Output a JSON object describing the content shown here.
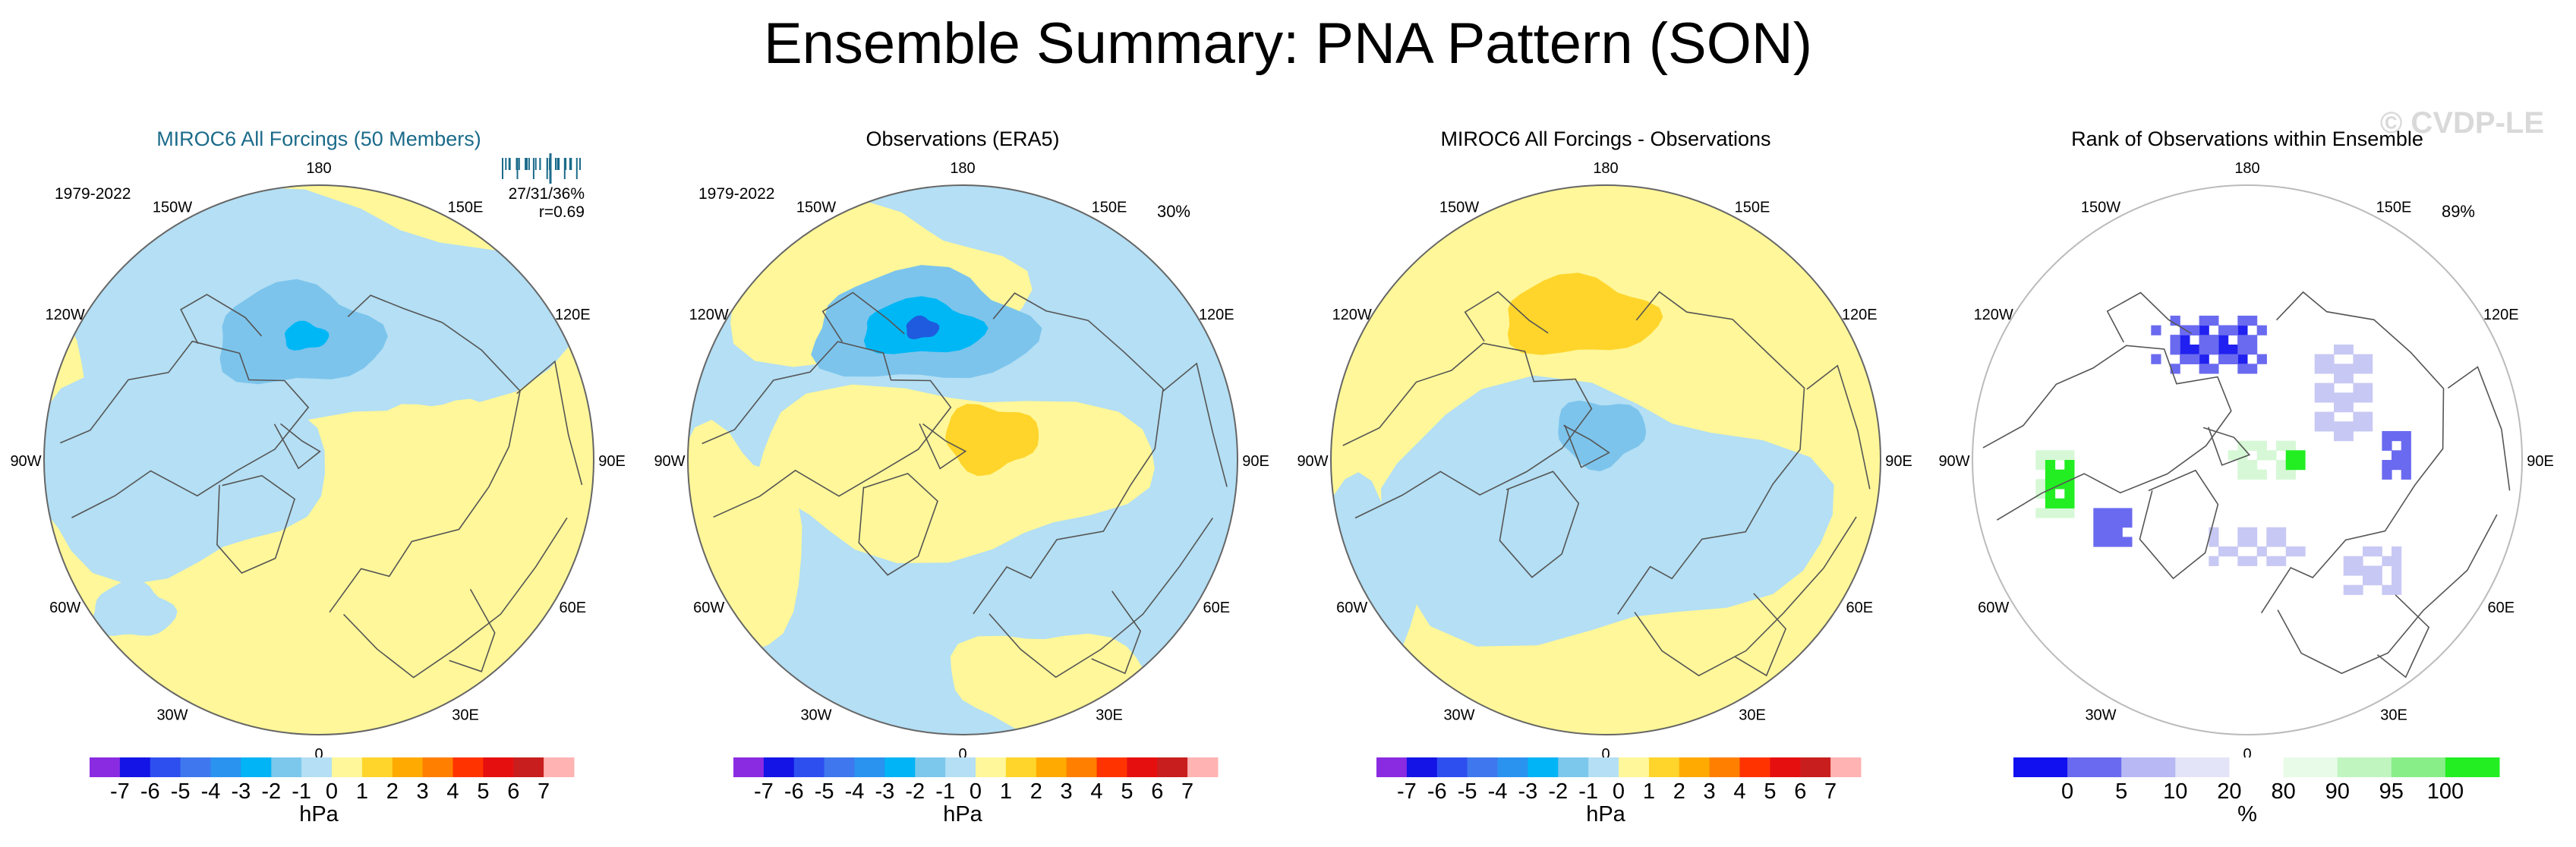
{
  "title": "Ensemble Summary: PNA Pattern (SON)",
  "watermark": "© CVDP-LE",
  "lon_labels": [
    "180",
    "150E",
    "120E",
    "90E",
    "60E",
    "30E",
    "0",
    "30W",
    "60W",
    "90W",
    "120W",
    "150W"
  ],
  "colors": {
    "pos1": "#fff799",
    "pos2": "#ffd52b",
    "neg1": "#b4dff4",
    "neg2": "#7cc4ec",
    "neg3": "#3aa8ea",
    "neg4": "#00b7f5",
    "neg5": "#1e5bde",
    "rank_blue_dark": "#2020f0",
    "rank_blue_mid": "#6a6af0",
    "rank_blue_light": "#c8c8f4",
    "rank_green": "#22ee22",
    "rank_green_light": "#d6f8d6"
  },
  "chart_data": [
    {
      "type": "heatmap",
      "panel": "ensemble",
      "title": "MIROC6 All Forcings (50 Members)",
      "period": "1979-2022",
      "stats": "27/31/36%",
      "correlation": "r=0.69",
      "percent_label": "",
      "colorbar": {
        "label": "hPa",
        "ticks": [
          "-7",
          "-6",
          "-5",
          "-4",
          "-3",
          "-2",
          "-1",
          "0",
          "1",
          "2",
          "3",
          "4",
          "5",
          "6",
          "7"
        ],
        "colors": [
          "#8a2be2",
          "#1414e6",
          "#2e4ff0",
          "#3f78ee",
          "#2a93f0",
          "#00b4f5",
          "#7cc8ec",
          "#b4dff4",
          "#fff799",
          "#ffd52b",
          "#ffaa00",
          "#ff7f00",
          "#ff3300",
          "#e60f0f",
          "#c81e1e",
          "#ffb3b3"
        ]
      }
    },
    {
      "type": "heatmap",
      "panel": "observations",
      "title": "Observations (ERA5)",
      "period": "1979-2022",
      "stats": "",
      "correlation": "",
      "percent_label": "30%",
      "colorbar": {
        "label": "hPa",
        "ticks": [
          "-7",
          "-6",
          "-5",
          "-4",
          "-3",
          "-2",
          "-1",
          "0",
          "1",
          "2",
          "3",
          "4",
          "5",
          "6",
          "7"
        ],
        "colors": [
          "#8a2be2",
          "#1414e6",
          "#2e4ff0",
          "#3f78ee",
          "#2a93f0",
          "#00b4f5",
          "#7cc8ec",
          "#b4dff4",
          "#fff799",
          "#ffd52b",
          "#ffaa00",
          "#ff7f00",
          "#ff3300",
          "#e60f0f",
          "#c81e1e",
          "#ffb3b3"
        ]
      }
    },
    {
      "type": "heatmap",
      "panel": "difference",
      "title": "MIROC6 All Forcings - Observations",
      "period": "",
      "stats": "",
      "correlation": "",
      "percent_label": "",
      "colorbar": {
        "label": "hPa",
        "ticks": [
          "-7",
          "-6",
          "-5",
          "-4",
          "-3",
          "-2",
          "-1",
          "0",
          "1",
          "2",
          "3",
          "4",
          "5",
          "6",
          "7"
        ],
        "colors": [
          "#8a2be2",
          "#1414e6",
          "#2e4ff0",
          "#3f78ee",
          "#2a93f0",
          "#00b4f5",
          "#7cc8ec",
          "#b4dff4",
          "#fff799",
          "#ffd52b",
          "#ffaa00",
          "#ff7f00",
          "#ff3300",
          "#e60f0f",
          "#c81e1e",
          "#ffb3b3"
        ]
      }
    },
    {
      "type": "heatmap",
      "panel": "rank",
      "title": "Rank of Observations within Ensemble",
      "period": "",
      "stats": "",
      "correlation": "",
      "percent_label": "89%",
      "colorbar": {
        "label": "%",
        "ticks": [
          "0",
          "5",
          "10",
          "20",
          "80",
          "90",
          "95",
          "100"
        ],
        "colors": [
          "#1010f0",
          "#6a6af0",
          "#b8b8f4",
          "#e4e4f8",
          "#ffffff",
          "#e8fbe8",
          "#c0f5c0",
          "#88ee88",
          "#22ee22"
        ]
      }
    }
  ]
}
